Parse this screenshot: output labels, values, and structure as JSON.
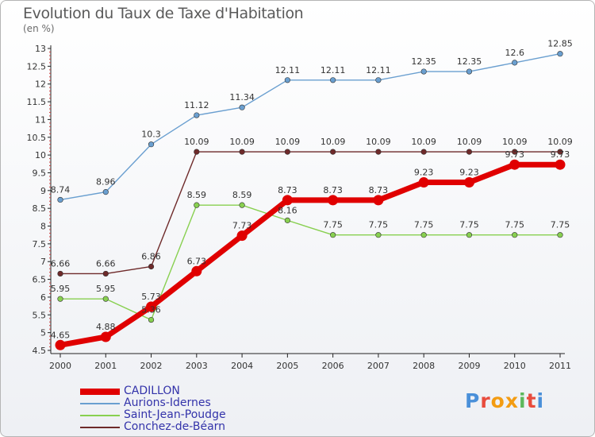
{
  "header": {
    "title": "Evolution du Taux de Taxe d'Habitation",
    "subtitle": "(en %)"
  },
  "logo": {
    "text": "Proxiti",
    "letter_colors": [
      "#4a90d9",
      "#e84c3d",
      "#f39c12",
      "#f39c12",
      "#5cb85c",
      "#e84c3d",
      "#4a90d9"
    ]
  },
  "chart_data": {
    "type": "line",
    "x": [
      "2000",
      "2001",
      "2002",
      "2003",
      "2004",
      "2005",
      "2006",
      "2007",
      "2008",
      "2009",
      "2010",
      "2011"
    ],
    "ylim": [
      4.5,
      13
    ],
    "y_ticks": [
      "4.5",
      "5",
      "5.5",
      "6",
      "6.5",
      "7",
      "7.5",
      "8",
      "8.5",
      "9",
      "9.5",
      "10",
      "10.5",
      "11",
      "11.5",
      "12",
      "12.5",
      "13"
    ],
    "grid": false,
    "legend_position": "bottom-left",
    "series": [
      {
        "name": "CADILLON",
        "color": "#e00000",
        "values": [
          4.65,
          4.88,
          5.73,
          6.73,
          7.73,
          8.73,
          8.73,
          8.73,
          9.23,
          9.23,
          9.73,
          9.73
        ],
        "labels": [
          "4.65",
          "4.88",
          "5.73",
          "6.73",
          "7.73",
          "8.73",
          "8.73",
          "8.73",
          "9.23",
          "9.23",
          "9.73",
          "9.73"
        ]
      },
      {
        "name": "Aurions-Idernes",
        "color": "#6a9fd0",
        "values": [
          8.74,
          8.96,
          10.3,
          11.12,
          11.34,
          12.11,
          12.11,
          12.11,
          12.35,
          12.35,
          12.6,
          12.85
        ],
        "labels": [
          "8.74",
          "8.96",
          "10.3",
          "11.12",
          "11.34",
          "12.11",
          "12.11",
          "12.11",
          "12.35",
          "12.35",
          "12.6",
          "12.85"
        ]
      },
      {
        "name": "Saint-Jean-Poudge",
        "color": "#88d050",
        "values": [
          5.95,
          5.95,
          5.36,
          8.59,
          8.59,
          8.16,
          7.75,
          7.75,
          7.75,
          7.75,
          7.75,
          7.75
        ],
        "labels": [
          "5.95",
          "5.95",
          "5.36",
          "8.59",
          "8.59",
          "8.16",
          "7.75",
          "7.75",
          "7.75",
          "7.75",
          "7.75",
          "7.75"
        ]
      },
      {
        "name": "Conchez-de-Béarn",
        "color": "#6e2a2a",
        "values": [
          6.66,
          6.66,
          6.86,
          10.09,
          10.09,
          10.09,
          10.09,
          10.09,
          10.09,
          10.09,
          10.09,
          10.09
        ],
        "labels": [
          "6.66",
          "6.66",
          "6.86",
          "10.09",
          "10.09",
          "10.09",
          "10.09",
          "10.09",
          "10.09",
          "10.09",
          "10.09",
          "10.09"
        ]
      }
    ]
  }
}
